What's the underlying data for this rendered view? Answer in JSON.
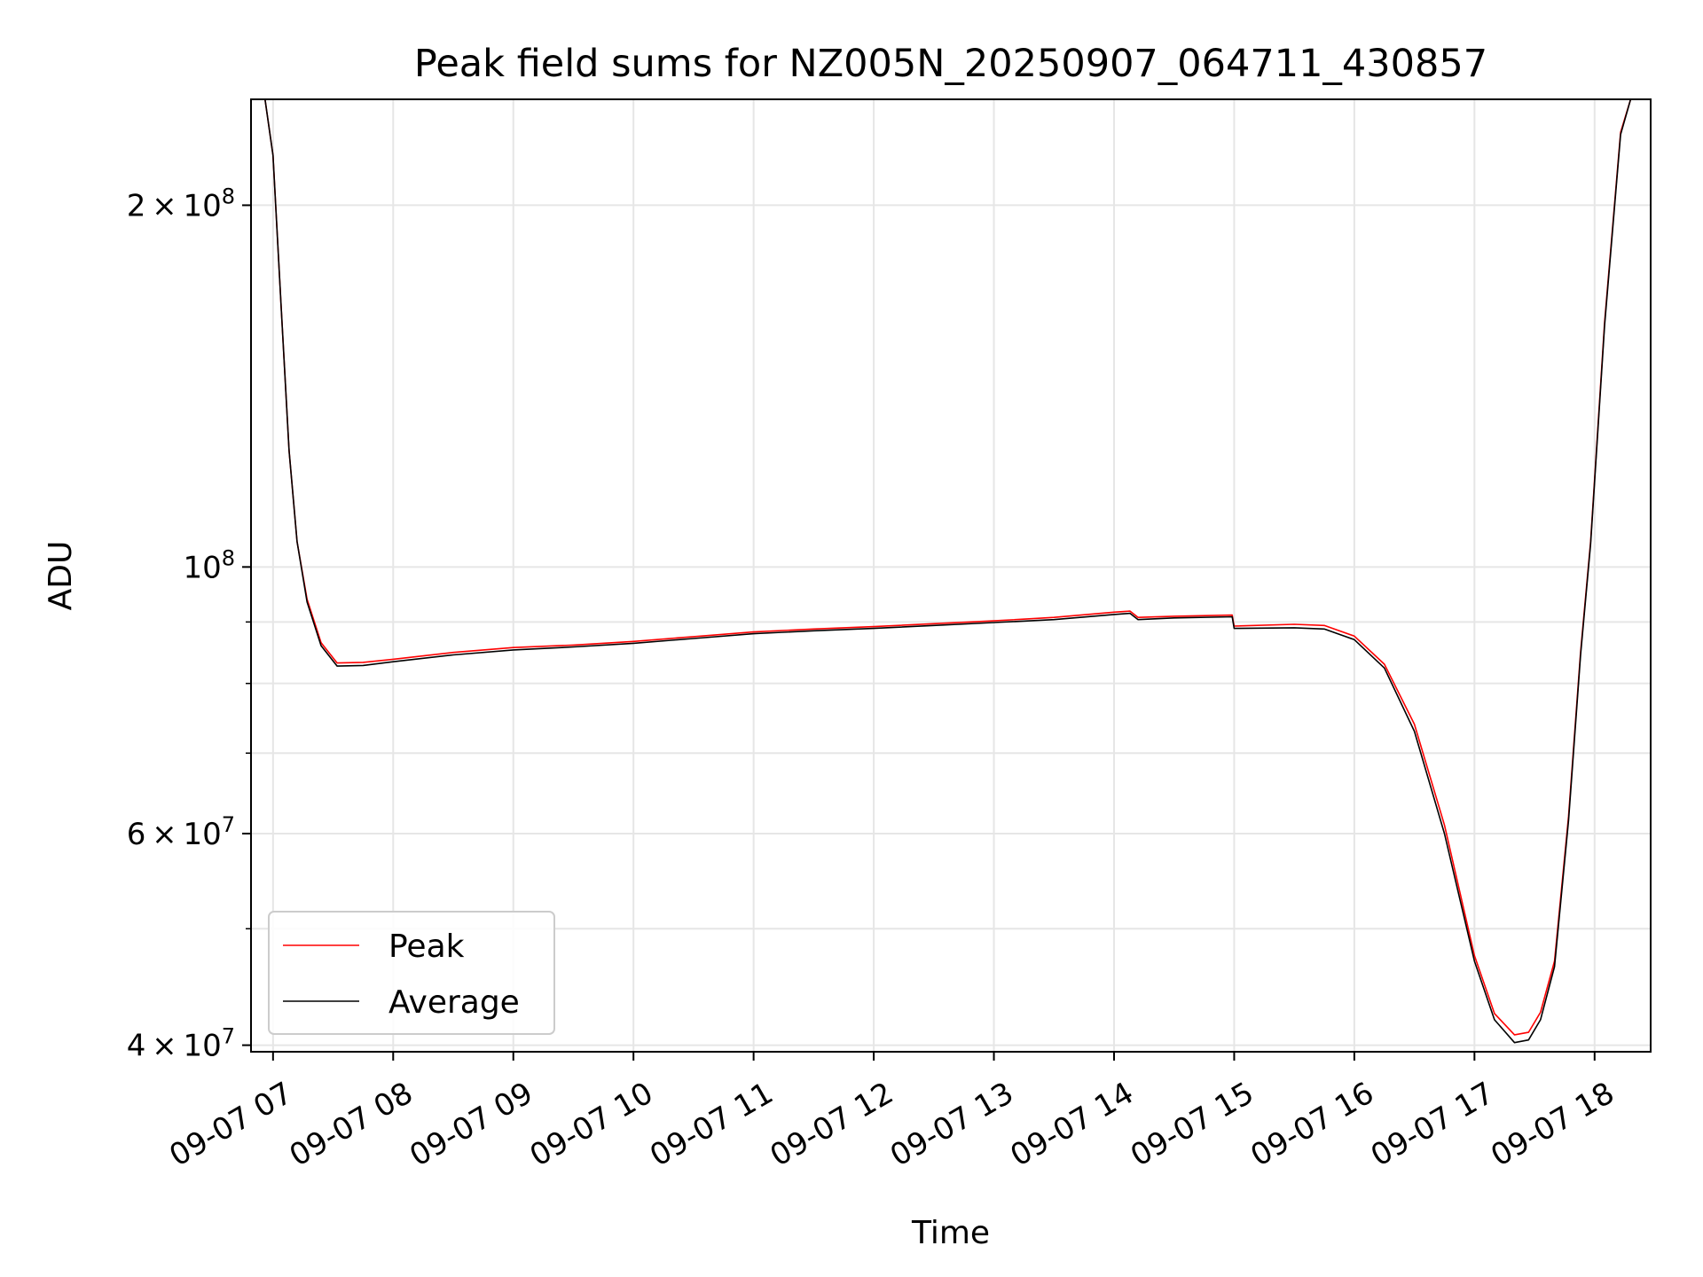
{
  "chart_data": {
    "type": "line",
    "title": "Peak field sums for NZ005N_20250907_064711_430857",
    "xlabel": "Time",
    "ylabel": "ADU",
    "y_scale": "log",
    "ylim": [
      39500000,
      245000000
    ],
    "xlim": [
      "2025-09-07 06:49",
      "2025-09-07 18:28"
    ],
    "grid": true,
    "legend_position": "lower left",
    "x_ticks": [
      {
        "time": "2025-09-07 07:00",
        "label": "09-07 07"
      },
      {
        "time": "2025-09-07 08:00",
        "label": "09-07 08"
      },
      {
        "time": "2025-09-07 09:00",
        "label": "09-07 09"
      },
      {
        "time": "2025-09-07 10:00",
        "label": "09-07 10"
      },
      {
        "time": "2025-09-07 11:00",
        "label": "09-07 11"
      },
      {
        "time": "2025-09-07 12:00",
        "label": "09-07 12"
      },
      {
        "time": "2025-09-07 13:00",
        "label": "09-07 13"
      },
      {
        "time": "2025-09-07 14:00",
        "label": "09-07 14"
      },
      {
        "time": "2025-09-07 15:00",
        "label": "09-07 15"
      },
      {
        "time": "2025-09-07 16:00",
        "label": "09-07 16"
      },
      {
        "time": "2025-09-07 17:00",
        "label": "09-07 17"
      },
      {
        "time": "2025-09-07 18:00",
        "label": "09-07 18"
      }
    ],
    "y_ticks_major": [
      {
        "value": 40000000,
        "mantissa": "4",
        "exponent": "7"
      },
      {
        "value": 60000000,
        "mantissa": "6",
        "exponent": "7"
      },
      {
        "value": 100000000,
        "mantissa": "",
        "exponent": "8"
      },
      {
        "value": 200000000,
        "mantissa": "2",
        "exponent": "8"
      }
    ],
    "y_ticks_minor": [
      50000000,
      70000000,
      80000000,
      90000000
    ],
    "series": [
      {
        "name": "Peak",
        "color": "#ff0000",
        "points": [
          [
            "2025-09-07 06:49",
            245000000
          ],
          [
            "2025-09-07 06:56",
            245000000
          ],
          [
            "2025-09-07 07:00",
            220000000
          ],
          [
            "2025-09-07 07:04",
            165000000
          ],
          [
            "2025-09-07 07:08",
            125000000
          ],
          [
            "2025-09-07 07:12",
            105000000
          ],
          [
            "2025-09-07 07:17",
            94000000
          ],
          [
            "2025-09-07 07:24",
            86500000
          ],
          [
            "2025-09-07 07:32",
            83200000
          ],
          [
            "2025-09-07 07:45",
            83300000
          ],
          [
            "2025-09-07 08:00",
            83800000
          ],
          [
            "2025-09-07 08:30",
            84900000
          ],
          [
            "2025-09-07 09:00",
            85700000
          ],
          [
            "2025-09-07 09:30",
            86100000
          ],
          [
            "2025-09-07 10:00",
            86700000
          ],
          [
            "2025-09-07 10:30",
            87500000
          ],
          [
            "2025-09-07 11:00",
            88300000
          ],
          [
            "2025-09-07 11:30",
            88800000
          ],
          [
            "2025-09-07 12:00",
            89200000
          ],
          [
            "2025-09-07 12:30",
            89700000
          ],
          [
            "2025-09-07 13:00",
            90200000
          ],
          [
            "2025-09-07 13:30",
            90800000
          ],
          [
            "2025-09-07 14:00",
            91700000
          ],
          [
            "2025-09-07 14:08",
            91900000
          ],
          [
            "2025-09-07 14:12",
            90800000
          ],
          [
            "2025-09-07 14:30",
            91000000
          ],
          [
            "2025-09-07 14:59",
            91200000
          ],
          [
            "2025-09-07 15:00",
            89300000
          ],
          [
            "2025-09-07 15:30",
            89600000
          ],
          [
            "2025-09-07 15:45",
            89400000
          ],
          [
            "2025-09-07 16:00",
            87600000
          ],
          [
            "2025-09-07 16:15",
            83000000
          ],
          [
            "2025-09-07 16:30",
            74000000
          ],
          [
            "2025-09-07 16:45",
            61000000
          ],
          [
            "2025-09-07 17:00",
            47500000
          ],
          [
            "2025-09-07 17:10",
            42500000
          ],
          [
            "2025-09-07 17:20",
            40800000
          ],
          [
            "2025-09-07 17:27",
            41000000
          ],
          [
            "2025-09-07 17:33",
            42600000
          ],
          [
            "2025-09-07 17:40",
            47000000
          ],
          [
            "2025-09-07 17:47",
            62000000
          ],
          [
            "2025-09-07 17:53",
            85000000
          ],
          [
            "2025-09-07 17:58",
            105000000
          ],
          [
            "2025-09-07 18:05",
            160000000
          ],
          [
            "2025-09-07 18:13",
            230000000
          ],
          [
            "2025-09-07 18:18",
            245000000
          ],
          [
            "2025-09-07 18:28",
            245000000
          ]
        ]
      },
      {
        "name": "Average",
        "color": "#000000",
        "points": [
          [
            "2025-09-07 06:49",
            245000000
          ],
          [
            "2025-09-07 06:56",
            245000000
          ],
          [
            "2025-09-07 07:00",
            220000000
          ],
          [
            "2025-09-07 07:04",
            165000000
          ],
          [
            "2025-09-07 07:08",
            125000000
          ],
          [
            "2025-09-07 07:12",
            105000000
          ],
          [
            "2025-09-07 07:17",
            93500000
          ],
          [
            "2025-09-07 07:24",
            86000000
          ],
          [
            "2025-09-07 07:32",
            82700000
          ],
          [
            "2025-09-07 07:45",
            82800000
          ],
          [
            "2025-09-07 08:00",
            83400000
          ],
          [
            "2025-09-07 08:30",
            84500000
          ],
          [
            "2025-09-07 09:00",
            85300000
          ],
          [
            "2025-09-07 09:30",
            85800000
          ],
          [
            "2025-09-07 10:00",
            86400000
          ],
          [
            "2025-09-07 10:30",
            87200000
          ],
          [
            "2025-09-07 11:00",
            88000000
          ],
          [
            "2025-09-07 11:30",
            88500000
          ],
          [
            "2025-09-07 12:00",
            88900000
          ],
          [
            "2025-09-07 12:30",
            89400000
          ],
          [
            "2025-09-07 13:00",
            89900000
          ],
          [
            "2025-09-07 13:30",
            90400000
          ],
          [
            "2025-09-07 14:00",
            91300000
          ],
          [
            "2025-09-07 14:08",
            91500000
          ],
          [
            "2025-09-07 14:12",
            90400000
          ],
          [
            "2025-09-07 14:30",
            90700000
          ],
          [
            "2025-09-07 14:59",
            90900000
          ],
          [
            "2025-09-07 15:00",
            88900000
          ],
          [
            "2025-09-07 15:30",
            89000000
          ],
          [
            "2025-09-07 15:45",
            88800000
          ],
          [
            "2025-09-07 16:00",
            87000000
          ],
          [
            "2025-09-07 16:15",
            82400000
          ],
          [
            "2025-09-07 16:30",
            73000000
          ],
          [
            "2025-09-07 16:45",
            60000000
          ],
          [
            "2025-09-07 17:00",
            47000000
          ],
          [
            "2025-09-07 17:10",
            42000000
          ],
          [
            "2025-09-07 17:20",
            40200000
          ],
          [
            "2025-09-07 17:27",
            40400000
          ],
          [
            "2025-09-07 17:33",
            42000000
          ],
          [
            "2025-09-07 17:40",
            46500000
          ],
          [
            "2025-09-07 17:47",
            61500000
          ],
          [
            "2025-09-07 17:53",
            84500000
          ],
          [
            "2025-09-07 17:58",
            104500000
          ],
          [
            "2025-09-07 18:05",
            159000000
          ],
          [
            "2025-09-07 18:13",
            229000000
          ],
          [
            "2025-09-07 18:18",
            245000000
          ],
          [
            "2025-09-07 18:28",
            245000000
          ]
        ]
      }
    ]
  }
}
